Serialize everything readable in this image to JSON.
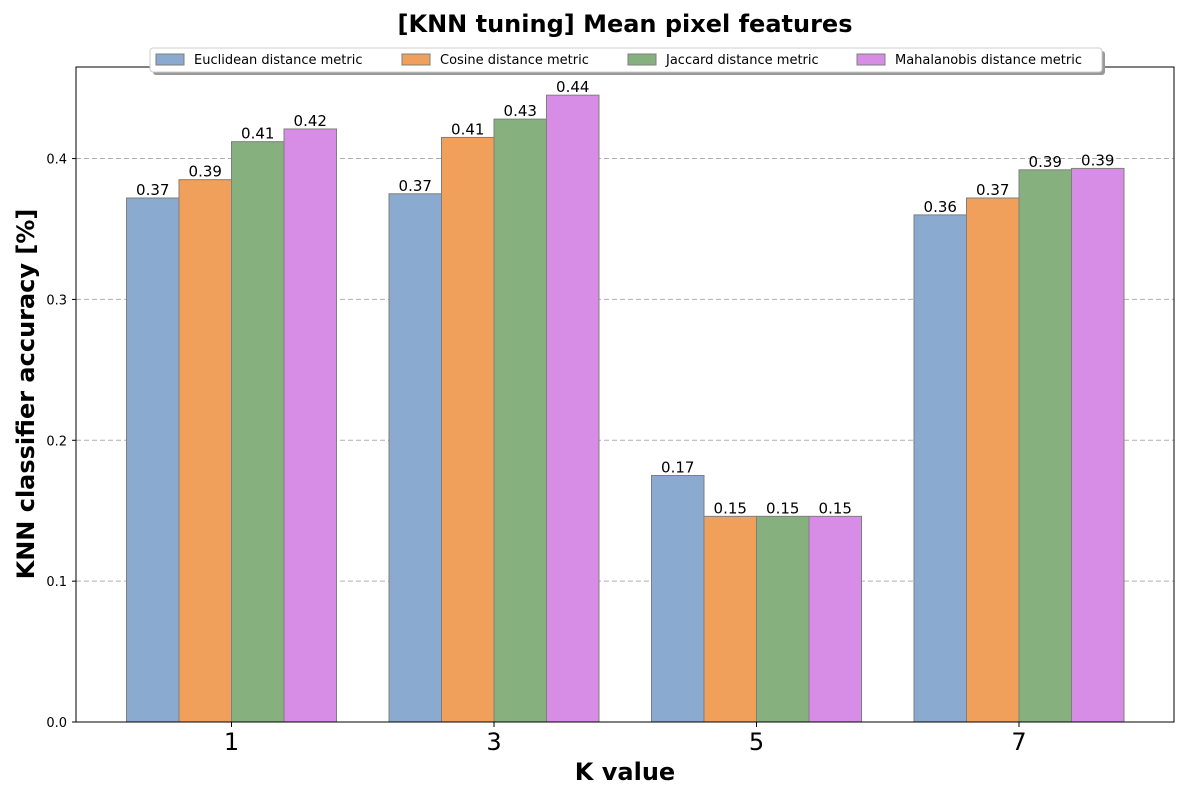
{
  "chart_data": {
    "type": "bar",
    "title": "[KNN tuning] Mean pixel features",
    "xlabel": "K value",
    "ylabel": "KNN classifier accuracy [%]",
    "categories": [
      "1",
      "3",
      "5",
      "7"
    ],
    "ylim": [
      0,
      0.465
    ],
    "yticks": [
      "0.0",
      "0.1",
      "0.2",
      "0.3",
      "0.4"
    ],
    "ytick_values": [
      0.0,
      0.1,
      0.2,
      0.3,
      0.4
    ],
    "grid": "y, dashed",
    "legend_position": "top-center",
    "series": [
      {
        "name": "Euclidean distance metric",
        "color": "#8aaacf",
        "values": [
          0.372,
          0.375,
          0.175,
          0.36
        ],
        "labels": [
          "0.37",
          "0.37",
          "0.17",
          "0.36"
        ]
      },
      {
        "name": "Cosine distance metric",
        "color": "#f0a05a",
        "values": [
          0.385,
          0.415,
          0.146,
          0.372
        ],
        "labels": [
          "0.39",
          "0.41",
          "0.15",
          "0.37"
        ]
      },
      {
        "name": "Jaccard distance metric",
        "color": "#86b17f",
        "values": [
          0.412,
          0.428,
          0.146,
          0.392
        ],
        "labels": [
          "0.41",
          "0.43",
          "0.15",
          "0.39"
        ]
      },
      {
        "name": "Mahalanobis distance metric",
        "color": "#d78de6",
        "values": [
          0.421,
          0.445,
          0.146,
          0.393
        ],
        "labels": [
          "0.42",
          "0.44",
          "0.15",
          "0.39"
        ]
      }
    ]
  }
}
